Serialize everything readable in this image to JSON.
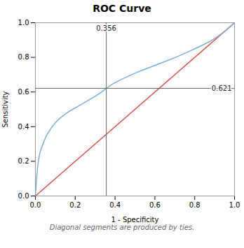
{
  "chart_data": {
    "type": "line",
    "title": "ROC Curve",
    "xlabel": "1 - Specificity",
    "ylabel": "Sensitivity",
    "footnote": "Diagonal segments are produced by ties.",
    "xlim": [
      0.0,
      1.0
    ],
    "ylim": [
      0.0,
      1.0
    ],
    "xticks": [
      {
        "value": 0,
        "label": "0.0"
      },
      0.2,
      0.4,
      0.6,
      0.8,
      {
        "value": 1,
        "label": "1.0"
      }
    ],
    "yticks": [
      {
        "value": 0,
        "label": "0.0"
      },
      0.2,
      0.4,
      0.6,
      0.8,
      {
        "value": 1,
        "label": "1.0"
      }
    ],
    "grid": false,
    "series": [
      {
        "color": "#d9534f",
        "x": [
          0,
          1
        ],
        "values": [
          0,
          1
        ]
      },
      {
        "color": "#7aaed6",
        "x": [
          0.0,
          0.003,
          0.006,
          0.01,
          0.015,
          0.02,
          0.025,
          0.03,
          0.04,
          0.05,
          0.06,
          0.07,
          0.08,
          0.09,
          0.1,
          0.115,
          0.13,
          0.15,
          0.17,
          0.19,
          0.21,
          0.24,
          0.27,
          0.3,
          0.33,
          0.356,
          0.39,
          0.43,
          0.47,
          0.51,
          0.56,
          0.61,
          0.66,
          0.71,
          0.76,
          0.82,
          0.87,
          0.92,
          0.96,
          1.0
        ],
        "values": [
          0.0,
          0.05,
          0.1,
          0.155,
          0.2,
          0.235,
          0.258,
          0.275,
          0.305,
          0.335,
          0.358,
          0.375,
          0.393,
          0.408,
          0.422,
          0.44,
          0.455,
          0.472,
          0.488,
          0.502,
          0.515,
          0.535,
          0.555,
          0.575,
          0.598,
          0.621,
          0.648,
          0.672,
          0.693,
          0.713,
          0.736,
          0.758,
          0.78,
          0.803,
          0.828,
          0.86,
          0.888,
          0.924,
          0.958,
          1.0
        ]
      }
    ],
    "crosshair": {
      "x": 0.356,
      "y": 0.621,
      "x_label": "0.356",
      "y_label": "0.621",
      "color": "#666666"
    }
  }
}
